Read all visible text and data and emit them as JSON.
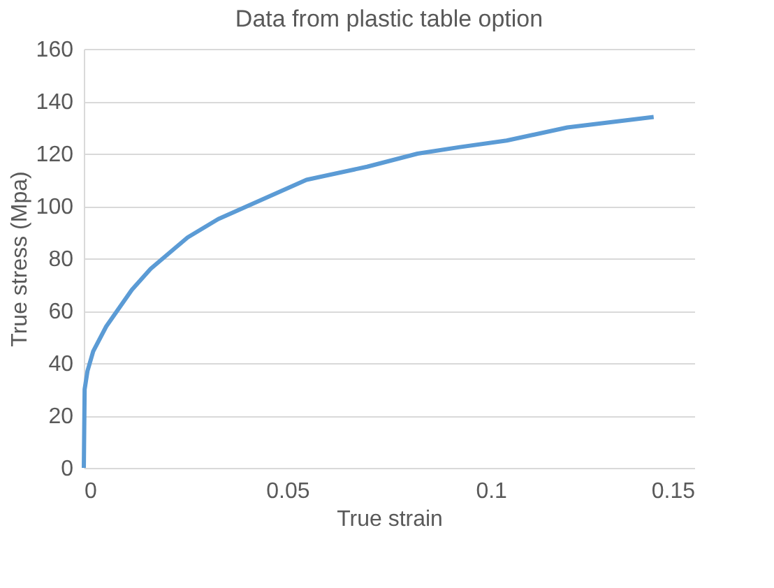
{
  "chart_data": {
    "type": "line",
    "title": "Data from plastic table option",
    "xlabel": "True strain",
    "ylabel": "True stress (Mpa)",
    "x": [
      0,
      0.0002,
      0.0009,
      0.0023,
      0.0055,
      0.0118,
      0.0164,
      0.0255,
      0.033,
      0.0547,
      0.0696,
      0.082,
      0.0924,
      0.1039,
      0.1188,
      0.14
    ],
    "series": [
      {
        "color": "#5b9bd5",
        "values": [
          0,
          30,
          37,
          44.5,
          54,
          68,
          76,
          88,
          95,
          110,
          115,
          120,
          122.5,
          125,
          130,
          134
        ]
      }
    ],
    "xlim": [
      0,
      0.15
    ],
    "xticks": [
      0,
      0.05,
      0.1,
      0.15
    ],
    "ylim": [
      0,
      160
    ],
    "yticks": [
      0,
      20,
      40,
      60,
      80,
      100,
      120,
      140,
      160
    ],
    "grid": "y",
    "marker": "none",
    "line_style": "solid"
  }
}
